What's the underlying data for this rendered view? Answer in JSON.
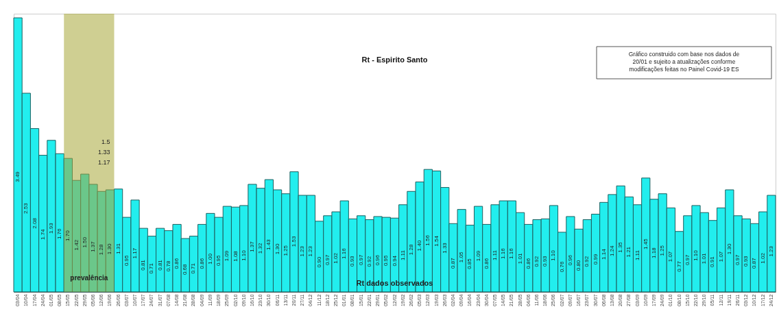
{
  "chart_data": {
    "type": "bar",
    "title": "Rt - Espirito Santo",
    "categories": [
      "03/04",
      "10/04",
      "17/04",
      "24/04",
      "01/05",
      "08/05",
      "15/05",
      "22/05",
      "29/05",
      "05/06",
      "12/06",
      "19/06",
      "26/06",
      "03/07",
      "10/07",
      "17/07",
      "24/07",
      "31/07",
      "07/08",
      "14/08",
      "21/08",
      "28/08",
      "04/09",
      "11/09",
      "18/09",
      "25/09",
      "02/10",
      "09/10",
      "16/10",
      "23/10",
      "30/10",
      "06/11",
      "13/11",
      "20/11",
      "27/11",
      "04/12",
      "11/12",
      "18/12",
      "25/12",
      "01/01",
      "08/01",
      "15/01",
      "22/01",
      "29/01",
      "05/02",
      "12/02",
      "19/02",
      "26/02",
      "05/03",
      "12/03",
      "19/03",
      "26/03",
      "02/04",
      "09/04",
      "16/04",
      "23/04",
      "30/04",
      "07/05",
      "14/05",
      "21/05",
      "28/05",
      "04/06",
      "11/06",
      "18/06",
      "25/06",
      "02/07",
      "09/07",
      "16/07",
      "23/07",
      "30/07",
      "06/08",
      "13/08",
      "20/08",
      "27/08",
      "03/09",
      "10/09",
      "17/09",
      "24/09",
      "01/10",
      "08/10",
      "15/10",
      "22/10",
      "29/10",
      "05/11",
      "12/11",
      "19/11",
      "26/11",
      "03/12",
      "10/12",
      "17/12",
      "24/12"
    ],
    "series": [
      {
        "name": "Rt dados observados",
        "color": "#22eeee",
        "values": [
          3.49,
          2.53,
          2.08,
          1.74,
          1.93,
          1.76,
          1.7,
          1.42,
          1.5,
          1.37,
          1.28,
          1.3,
          1.31,
          0.95,
          1.17,
          0.81,
          0.71,
          0.81,
          0.78,
          0.86,
          0.68,
          0.71,
          0.86,
          1.0,
          0.95,
          1.09,
          1.08,
          1.1,
          1.37,
          1.32,
          1.43,
          1.3,
          1.25,
          1.53,
          1.23,
          1.23,
          0.9,
          0.97,
          1.02,
          1.16,
          0.93,
          0.97,
          0.92,
          0.96,
          0.95,
          0.94,
          1.11,
          1.28,
          1.4,
          1.56,
          1.54,
          1.33,
          0.87,
          1.05,
          0.85,
          1.09,
          0.86,
          1.11,
          1.16,
          1.16,
          1.01,
          0.86,
          0.92,
          0.93,
          1.1,
          0.76,
          0.96,
          0.8,
          0.92,
          0.99,
          1.14,
          1.24,
          1.35,
          1.21,
          1.11,
          1.45,
          1.18,
          1.25,
          1.07,
          0.77,
          0.97,
          1.1,
          1.01,
          0.91,
          1.07,
          1.3,
          0.97,
          0.93,
          0.87,
          1.02,
          1.23
        ],
        "value_labels": [
          "3.49",
          "2.53",
          "2.08",
          "1.74",
          "1.93",
          "1.76",
          "1.70",
          "1.42",
          "1.50",
          "1.37",
          "1.28",
          "1.30",
          "1.31",
          "0.95",
          "1.17",
          "0.81",
          "0.71",
          "0.81",
          "0.78",
          "0.86",
          "0.68",
          "0.71",
          "0.86",
          "1.00",
          "0.95",
          "1.09",
          "1.08",
          "1.10",
          "1.37",
          "1.32",
          "1.43",
          "1.30",
          "1.25",
          "1.53",
          "1.23",
          "1.23",
          "0.90",
          "0.97",
          "1.02",
          "1.16",
          "0.93",
          "0.97",
          "0.92",
          "0.96",
          "0.95",
          "0.94",
          "1.11",
          "1.28",
          "1.40",
          "1.56",
          "1.54",
          "1.33",
          "0.87",
          "1.05",
          "0.85",
          "1.09",
          "0.86",
          "1.11",
          "1.16",
          "1.16",
          "1.01",
          "0.86",
          "0.92",
          "0.93",
          "1.10",
          "0.76",
          "0.96",
          "0.80",
          "0.92",
          "0.99",
          "1.14",
          "1.24",
          "1.35",
          "1.21",
          "1.11",
          "1.45",
          "1.18",
          "1.25",
          "1.07",
          "0.77",
          "0.97",
          "1.10",
          "1.01",
          "0.91",
          "1.07",
          "1.30",
          "0.97",
          "0.93",
          "0.87",
          "1.02",
          "1.23"
        ]
      }
    ],
    "bands": [
      {
        "axis": "x",
        "from": "15/05",
        "to": "19/06",
        "label": "prevalência",
        "color": "#a8a838"
      }
    ],
    "annotations": [
      "Gráfico construido com base nos dados de\n20/01  e sujeito a atualizações conforme\nmodificações feitas no Painel Covid-19 ES",
      "1.5",
      "1.33",
      "1.17"
    ]
  }
}
